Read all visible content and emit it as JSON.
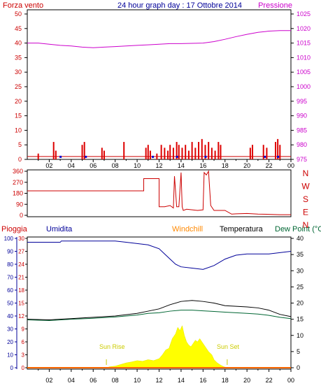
{
  "chart_data": [
    {
      "type": "line",
      "title": "24 hour graph day : 17 Ottobre 2014",
      "left_label": "Forza vento",
      "right_label": "Pressione",
      "x_ticks": [
        "02",
        "04",
        "06",
        "08",
        "10",
        "12",
        "14",
        "16",
        "18",
        "20",
        "22",
        "00"
      ],
      "left_ticks": [
        "0",
        "5",
        "10",
        "15",
        "20",
        "25",
        "30",
        "35",
        "40",
        "45",
        "50"
      ],
      "right_ticks": [
        "975",
        "980",
        "985",
        "990",
        "995",
        "1000",
        "1005",
        "1010",
        "1015",
        "1020",
        "1025"
      ],
      "ylim_left": [
        0,
        50
      ],
      "ylim_right": [
        975,
        1025
      ],
      "pressure_hpa": {
        "x": [
          0,
          1,
          2,
          3,
          4,
          5,
          6,
          7,
          8,
          9,
          10,
          11,
          12,
          13,
          14,
          15,
          16,
          17,
          18,
          19,
          20,
          21,
          22,
          23,
          24
        ],
        "y": [
          1015,
          1015,
          1014.6,
          1014.2,
          1014.0,
          1013.6,
          1013.4,
          1013.6,
          1013.8,
          1014.0,
          1014.2,
          1014.4,
          1014.6,
          1014.8,
          1014.8,
          1014.9,
          1015.0,
          1015.5,
          1016.3,
          1017.2,
          1018.0,
          1018.7,
          1019.1,
          1019.3,
          1019.3
        ]
      },
      "wind_gusts": [
        {
          "h": 1.0,
          "v": 2
        },
        {
          "h": 2.4,
          "v": 6
        },
        {
          "h": 2.6,
          "v": 3
        },
        {
          "h": 5.0,
          "v": 5
        },
        {
          "h": 5.2,
          "v": 6
        },
        {
          "h": 6.8,
          "v": 4
        },
        {
          "h": 7.0,
          "v": 3
        },
        {
          "h": 8.8,
          "v": 6
        },
        {
          "h": 10.8,
          "v": 4
        },
        {
          "h": 11.0,
          "v": 5
        },
        {
          "h": 11.2,
          "v": 3
        },
        {
          "h": 11.8,
          "v": 2
        },
        {
          "h": 12.2,
          "v": 5
        },
        {
          "h": 12.5,
          "v": 4
        },
        {
          "h": 12.8,
          "v": 3
        },
        {
          "h": 13.0,
          "v": 5
        },
        {
          "h": 13.3,
          "v": 4
        },
        {
          "h": 13.6,
          "v": 6
        },
        {
          "h": 13.8,
          "v": 5
        },
        {
          "h": 14.1,
          "v": 4
        },
        {
          "h": 14.4,
          "v": 5
        },
        {
          "h": 14.7,
          "v": 3
        },
        {
          "h": 15.0,
          "v": 6
        },
        {
          "h": 15.3,
          "v": 4
        },
        {
          "h": 15.6,
          "v": 6
        },
        {
          "h": 15.9,
          "v": 7
        },
        {
          "h": 16.2,
          "v": 5
        },
        {
          "h": 16.5,
          "v": 6
        },
        {
          "h": 16.8,
          "v": 4
        },
        {
          "h": 17.1,
          "v": 3
        },
        {
          "h": 17.4,
          "v": 6
        },
        {
          "h": 17.6,
          "v": 5
        },
        {
          "h": 20.3,
          "v": 4
        },
        {
          "h": 20.5,
          "v": 5
        },
        {
          "h": 21.5,
          "v": 5
        },
        {
          "h": 21.8,
          "v": 4
        },
        {
          "h": 22.6,
          "v": 6
        },
        {
          "h": 22.8,
          "v": 7
        },
        {
          "h": 23.0,
          "v": 5
        }
      ],
      "wind_avg": [
        {
          "h": 3.0,
          "v": 1
        },
        {
          "h": 5.3,
          "v": 1
        },
        {
          "h": 11.4,
          "v": 1
        },
        {
          "h": 13.6,
          "v": 1
        },
        {
          "h": 16.2,
          "v": 1
        },
        {
          "h": 21.6,
          "v": 1
        },
        {
          "h": 22.8,
          "v": 1
        }
      ],
      "colors": {
        "wind": "#cc0000",
        "pressure": "#cc00cc",
        "avg": "#0000cc",
        "axis": "#000000"
      }
    },
    {
      "type": "line",
      "title": "",
      "left_ticks": [
        "0",
        "90",
        "180",
        "270",
        "360"
      ],
      "right_labels": [
        "N",
        "W",
        "S",
        "E",
        "N"
      ],
      "ylim": [
        0,
        360
      ],
      "direction": {
        "x": [
          0,
          10.6,
          10.6,
          12.0,
          12.0,
          12.5,
          13.0,
          13.3,
          13.4,
          13.6,
          13.8,
          14.0,
          14.1,
          14.2,
          14.5,
          15.0,
          15.5,
          16.0,
          16.1,
          16.3,
          16.5,
          16.7,
          17.0,
          18.0,
          18.6,
          19.0,
          20.0,
          21.0,
          22.0,
          23.0,
          24.0
        ],
        "y": [
          200,
          200,
          300,
          300,
          70,
          70,
          80,
          60,
          320,
          70,
          70,
          350,
          70,
          40,
          50,
          45,
          40,
          45,
          350,
          330,
          360,
          80,
          40,
          40,
          10,
          12,
          15,
          10,
          8,
          5,
          5
        ]
      },
      "colors": {
        "line": "#cc0000",
        "labels": "#cc0000"
      }
    },
    {
      "type": "line",
      "labels": {
        "pioggia": "Pioggia",
        "umidita": "Umidita",
        "windchill": "Windchill",
        "temperatura": "Temperatura",
        "dewpoint": "Dew Point (°C"
      },
      "humidity_ticks": [
        "0",
        "10",
        "20",
        "30",
        "40",
        "50",
        "60",
        "70",
        "80",
        "90",
        "100"
      ],
      "rain_ticks": [
        "0",
        "3",
        "6",
        "9",
        "12",
        "15",
        "18",
        "21",
        "24",
        "27",
        "30"
      ],
      "temp_ticks": [
        "0",
        "5",
        "10",
        "15",
        "20",
        "25",
        "30",
        "35",
        "40"
      ],
      "humidity_lim": [
        0,
        100
      ],
      "temp_lim": [
        0,
        40
      ],
      "humidity_pct": {
        "x": [
          0,
          3,
          3.1,
          8,
          9,
          10,
          11,
          12,
          12.5,
          13,
          13.5,
          14,
          15,
          16,
          17,
          18,
          19,
          20,
          21,
          22,
          23,
          24
        ],
        "y": [
          97,
          97,
          98,
          98,
          97,
          96,
          95,
          92,
          88,
          84,
          80,
          78,
          77,
          76,
          79,
          84,
          87,
          88,
          88,
          88,
          89,
          90
        ]
      },
      "temperature_c": {
        "x": [
          0,
          2,
          4,
          6,
          8,
          10,
          11,
          12,
          13,
          14,
          15,
          16,
          17,
          18,
          19,
          20,
          21,
          22,
          23,
          24
        ],
        "y": [
          15.0,
          14.8,
          15.2,
          15.6,
          16.0,
          16.8,
          17.5,
          18.2,
          19.5,
          20.5,
          20.8,
          20.5,
          20.0,
          19.2,
          19.0,
          18.8,
          18.5,
          17.8,
          16.5,
          15.8
        ]
      },
      "dewpoint_c": {
        "x": [
          0,
          2,
          4,
          6,
          8,
          10,
          11,
          12,
          13,
          14,
          15,
          16,
          17,
          18,
          19,
          20,
          21,
          22,
          23,
          24
        ],
        "y": [
          14.8,
          14.6,
          15.0,
          15.3,
          15.7,
          16.3,
          16.8,
          17.0,
          17.5,
          17.8,
          17.8,
          17.6,
          17.4,
          17.2,
          17.0,
          16.8,
          16.6,
          16.2,
          15.6,
          15.2
        ]
      },
      "solar_hours": [
        7.2,
        7.5,
        8.0,
        8.5,
        9.0,
        9.5,
        10.0,
        10.5,
        11.0,
        11.5,
        12.0,
        12.3,
        12.6,
        12.9,
        13.2,
        13.5,
        13.7,
        13.9,
        14.1,
        14.3,
        14.5,
        14.7,
        14.9,
        15.1,
        15.3,
        15.5,
        15.7,
        15.9,
        16.1,
        16.3,
        16.5,
        16.8,
        17.0,
        17.3,
        17.6,
        17.9,
        18.2
      ],
      "solar_level": [
        0,
        0.3,
        0.5,
        1.0,
        1.5,
        1.8,
        2.2,
        2.0,
        2.5,
        2.2,
        2.8,
        4.0,
        5.5,
        6.0,
        9.0,
        10.5,
        12.5,
        11.5,
        13.0,
        10.0,
        8.0,
        7.0,
        6.5,
        7.5,
        8.5,
        8.0,
        9.0,
        8.0,
        7.0,
        6.0,
        5.0,
        4.0,
        2.5,
        1.5,
        0.8,
        0.3,
        0
      ],
      "sun_rise_label": "Sun Rise",
      "sun_set_label": "Sun Set",
      "sun_rise_h": 7.2,
      "sun_set_h": 18.2,
      "x_ticks": [
        "02",
        "04",
        "06",
        "08",
        "10",
        "12",
        "14",
        "16",
        "18",
        "20",
        "22",
        "00"
      ],
      "colors": {
        "pioggia": "#cc0000",
        "umidita": "#000099",
        "windchill": "#ff8800",
        "temperatura": "#000000",
        "dewpoint": "#006633",
        "solar": "#ffff00",
        "rain_line": "#ff6600"
      }
    }
  ]
}
